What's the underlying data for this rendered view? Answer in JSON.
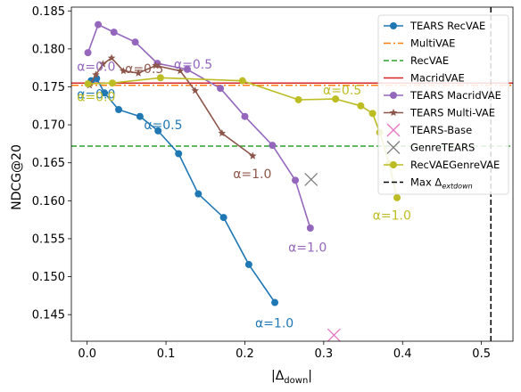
{
  "chart_data": {
    "type": "line",
    "xlabel_main": "|Δ",
    "xlabel_sub": "down",
    "xlabel_tail": "|",
    "ylabel": "NDCG@20",
    "xlim": [
      -0.02,
      0.54
    ],
    "ylim": [
      0.1415,
      0.1855
    ],
    "x_ticks": [
      "0.0",
      "0.1",
      "0.2",
      "0.3",
      "0.4",
      "0.5"
    ],
    "x_tick_values": [
      0.0,
      0.1,
      0.2,
      0.3,
      0.4,
      0.5
    ],
    "y_ticks": [
      "0.145",
      "0.150",
      "0.155",
      "0.160",
      "0.165",
      "0.170",
      "0.175",
      "0.180",
      "0.185"
    ],
    "y_tick_values": [
      0.145,
      0.15,
      0.155,
      0.16,
      0.165,
      0.17,
      0.175,
      0.18,
      0.185
    ],
    "grid": false,
    "legend_position": "top-right",
    "series": [
      {
        "name": "TEARS RecVAE",
        "kind": "line-marker",
        "marker": "circle",
        "color": "#1f77b4",
        "x": [
          0.005,
          0.012,
          0.022,
          0.04,
          0.067,
          0.09,
          0.116,
          0.141,
          0.173,
          0.205,
          0.238
        ],
        "y": [
          0.1758,
          0.1761,
          0.1742,
          0.172,
          0.1711,
          0.1692,
          0.1662,
          0.1609,
          0.1578,
          0.1516,
          0.1466
        ]
      },
      {
        "name": "MultiVAE",
        "kind": "hline",
        "dash": "dashdot",
        "color": "#ff7f0e",
        "y": 0.1752
      },
      {
        "name": "RecVAE",
        "kind": "hline",
        "dash": "dashed",
        "color": "#2ca02c",
        "y": 0.1672
      },
      {
        "name": "MacridVAE",
        "kind": "hline",
        "dash": "solid",
        "color": "#d62728",
        "y": 0.1755
      },
      {
        "name": "TEARS MacridVAE",
        "kind": "line-marker",
        "marker": "circle",
        "color": "#9467bd",
        "x": [
          0.001,
          0.014,
          0.034,
          0.061,
          0.089,
          0.127,
          0.169,
          0.2,
          0.235,
          0.264,
          0.283
        ],
        "y": [
          0.1795,
          0.1832,
          0.1822,
          0.1809,
          0.1781,
          0.1773,
          0.1748,
          0.1711,
          0.1673,
          0.1627,
          0.1564
        ]
      },
      {
        "name": "TEARS Multi-VAE",
        "kind": "line-marker",
        "marker": "star",
        "color": "#8c564b",
        "x": [
          0.003,
          0.011,
          0.02,
          0.031,
          0.046,
          0.065,
          0.087,
          0.118,
          0.137,
          0.171,
          0.21
        ],
        "y": [
          0.1752,
          0.1766,
          0.178,
          0.1788,
          0.1771,
          0.1768,
          0.1778,
          0.1771,
          0.1745,
          0.1689,
          0.1659
        ]
      },
      {
        "name": "TEARS-Base",
        "kind": "point",
        "marker": "x",
        "color": "#e377c2",
        "x": [
          0.313
        ],
        "y": [
          0.1423
        ]
      },
      {
        "name": "GenreTEARS",
        "kind": "point",
        "marker": "x",
        "color": "#7f7f7f",
        "x": [
          0.284
        ],
        "y": [
          0.1628
        ]
      },
      {
        "name": "RecVAEGenreVAE",
        "kind": "line-marker",
        "marker": "circle",
        "color": "#bcbd22",
        "x": [
          0.001,
          0.032,
          0.093,
          0.197,
          0.268,
          0.315,
          0.347,
          0.362,
          0.371,
          0.383,
          0.393
        ],
        "y": [
          0.1754,
          0.1755,
          0.1762,
          0.1758,
          0.1733,
          0.1734,
          0.1725,
          0.1715,
          0.169,
          0.1649,
          0.1604
        ]
      },
      {
        "name": "Max Δ",
        "name_sub": "extdown",
        "kind": "vline",
        "dash": "dashed",
        "color": "#000000",
        "x": 0.512
      }
    ],
    "annotations": [
      {
        "text": "α=0.0",
        "color": "#9467bd",
        "x": -0.013,
        "y": 0.1771
      },
      {
        "text": "α=0.5",
        "color": "#8c564b",
        "x": 0.048,
        "y": 0.1768
      },
      {
        "text": "α=0.5",
        "color": "#9467bd",
        "x": 0.11,
        "y": 0.1774
      },
      {
        "text": "α=0.0",
        "color": "#1f77b4",
        "x": -0.013,
        "y": 0.1735
      },
      {
        "text": "α=0.0",
        "color": "#bcbd22",
        "x": -0.013,
        "y": 0.1731
      },
      {
        "text": "α=0.5",
        "color": "#1f77b4",
        "x": 0.072,
        "y": 0.1694
      },
      {
        "text": "α=1.0",
        "color": "#8c564b",
        "x": 0.185,
        "y": 0.163
      },
      {
        "text": "α=0.5",
        "color": "#bcbd22",
        "x": 0.299,
        "y": 0.174
      },
      {
        "text": "α=1.0",
        "color": "#1f77b4",
        "x": 0.213,
        "y": 0.1433
      },
      {
        "text": "α=1.0",
        "color": "#9467bd",
        "x": 0.255,
        "y": 0.1533
      },
      {
        "text": "α=1.0",
        "color": "#bcbd22",
        "x": 0.362,
        "y": 0.1575
      }
    ]
  }
}
